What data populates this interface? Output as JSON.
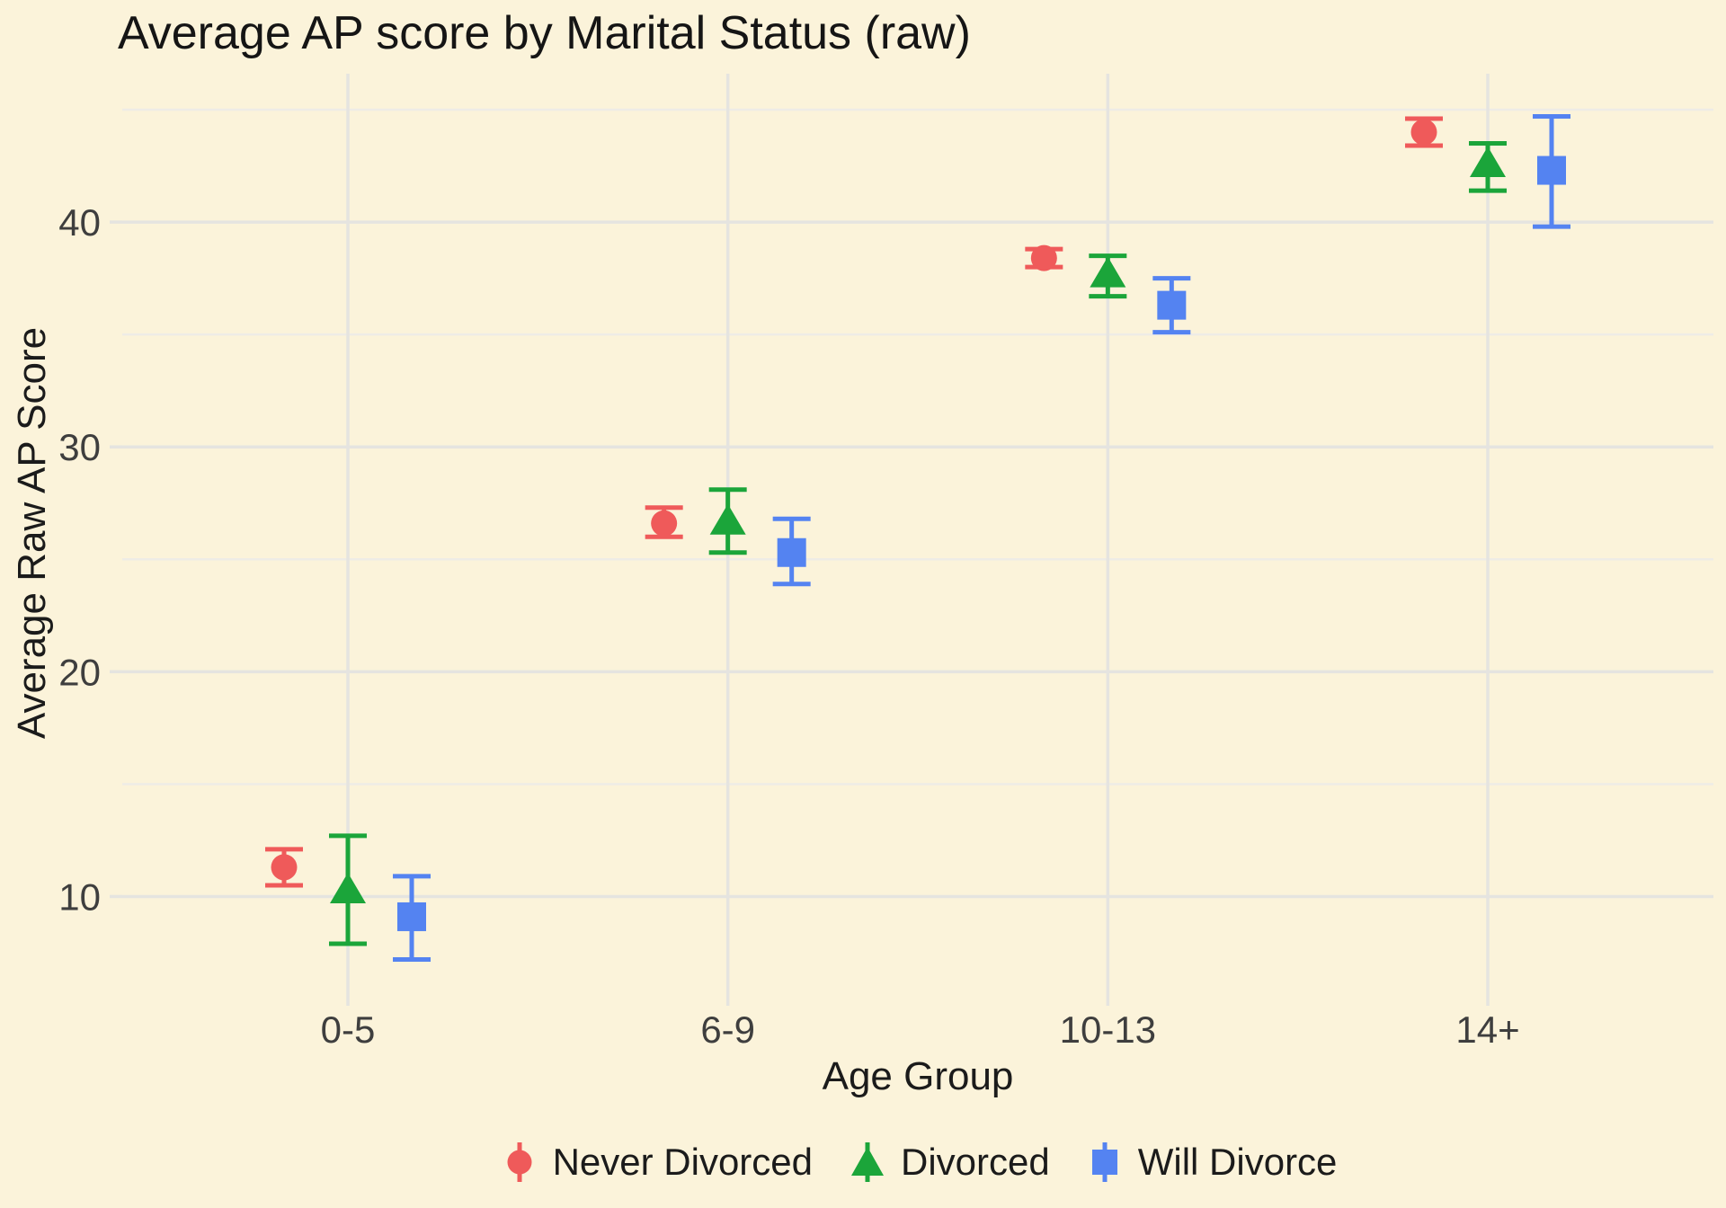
{
  "chart_data": {
    "type": "scatter",
    "title": "Average AP score by Marital Status (raw)",
    "xlabel": "Age Group",
    "ylabel": "Average Raw AP Score",
    "categories": [
      "0-5",
      "6-9",
      "10-13",
      "14+"
    ],
    "y_ticks": [
      10,
      20,
      30,
      40
    ],
    "y_minor_ticks": [
      15,
      25,
      35,
      45
    ],
    "ylim": [
      5.7,
      46.6
    ],
    "grid": "major+minor",
    "legend_position": "bottom",
    "error_bars": true,
    "colors": {
      "background": "#FBF3DA",
      "major_grid": "#E5E4E0",
      "minor_grid": "#EEECE6",
      "tick_text": "#3E3E3E",
      "title_text": "#151515"
    },
    "series": [
      {
        "name": "Never Divorced",
        "marker": "circle",
        "color": "#EF5A5A",
        "values": [
          11.3,
          26.6,
          38.4,
          44.0
        ],
        "err_low": [
          10.5,
          26.0,
          38.0,
          43.4
        ],
        "err_high": [
          12.1,
          27.3,
          38.8,
          44.6
        ]
      },
      {
        "name": "Divorced",
        "marker": "triangle",
        "color": "#1BA53A",
        "values": [
          10.3,
          26.7,
          37.7,
          42.6
        ],
        "err_low": [
          7.9,
          25.3,
          36.7,
          41.4
        ],
        "err_high": [
          12.7,
          28.1,
          38.5,
          43.5
        ]
      },
      {
        "name": "Will Divorce",
        "marker": "square",
        "color": "#5483F1",
        "values": [
          9.1,
          25.3,
          36.3,
          42.3
        ],
        "err_low": [
          7.2,
          23.9,
          35.1,
          39.8
        ],
        "err_high": [
          10.9,
          26.8,
          37.5,
          44.7
        ]
      }
    ]
  }
}
